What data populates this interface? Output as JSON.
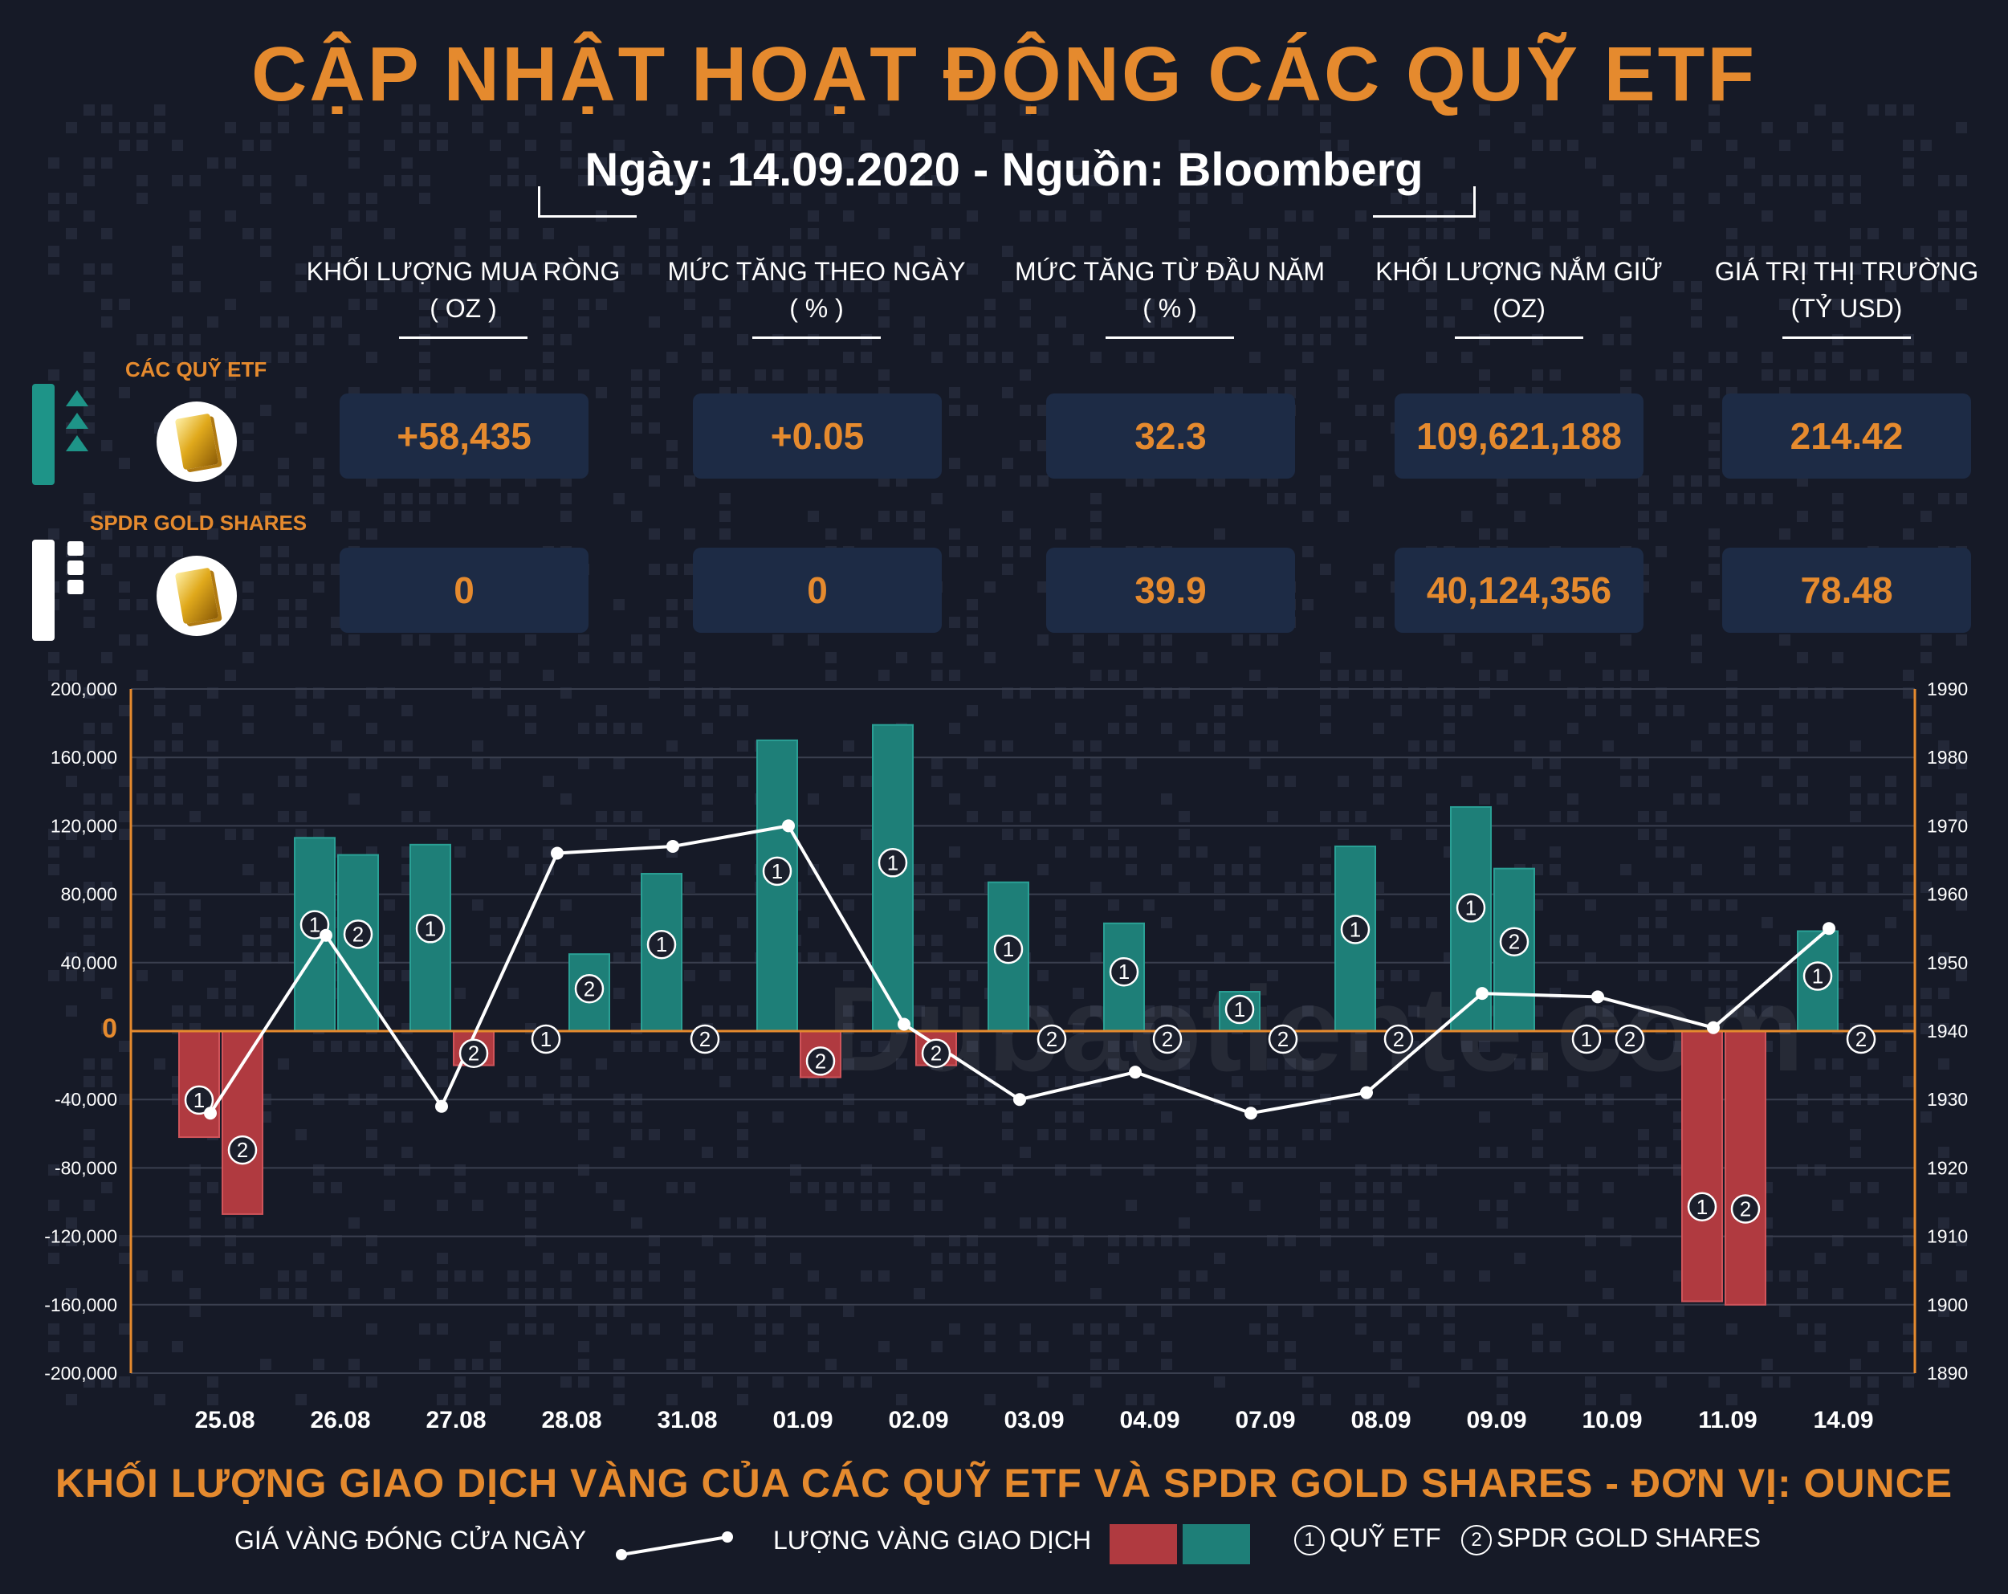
{
  "header": {
    "title": "CẬP NHẬT HOẠT ĐỘNG CÁC QUỸ ETF",
    "subtitle": "Ngày: 14.09.2020 - Nguồn: Bloomberg"
  },
  "table": {
    "columns": [
      {
        "line1": "KHỐI LƯỢNG MUA RÒNG",
        "line2": "( OZ )"
      },
      {
        "line1": "MỨC TĂNG THEO NGÀY",
        "line2": "( % )"
      },
      {
        "line1": "MỨC TĂNG TỪ ĐẦU NĂM",
        "line2": "( % )"
      },
      {
        "line1": "KHỐI LƯỢNG NẮM GIỮ",
        "line2": "(OZ)"
      },
      {
        "line1": "GIÁ TRỊ THỊ TRƯỜNG",
        "line2": "(TỶ USD)"
      }
    ],
    "rows": [
      {
        "label": "CÁC QUỸ ETF",
        "values": [
          "+58,435",
          "+0.05",
          "32.3",
          "109,621,188",
          "214.42"
        ]
      },
      {
        "label": "SPDR GOLD SHARES",
        "values": [
          "0",
          "0",
          "39.9",
          "40,124,356",
          "78.48"
        ]
      }
    ]
  },
  "watermark": "Dubaotiente.com",
  "colors": {
    "accent": "#e58a2e",
    "positive": "#1e7f78",
    "negative": "#b03a40",
    "background": "#161a27",
    "box": "#1d2b45"
  },
  "chart_data": {
    "type": "bar",
    "categories": [
      "25.08",
      "26.08",
      "27.08",
      "28.08",
      "31.08",
      "01.09",
      "02.09",
      "03.09",
      "04.09",
      "07.09",
      "08.09",
      "09.09",
      "10.09",
      "11.09",
      "14.09"
    ],
    "series": [
      {
        "name": "QUỸ ETF",
        "marker": "1",
        "values": [
          -62000,
          113000,
          109000,
          0,
          92000,
          170000,
          179000,
          87000,
          63000,
          23000,
          108000,
          131000,
          0,
          -158000,
          58435
        ]
      },
      {
        "name": "SPDR GOLD SHARES",
        "marker": "2",
        "values": [
          -107000,
          103000,
          -20000,
          45000,
          0,
          -27000,
          -20000,
          0,
          0,
          0,
          0,
          95000,
          0,
          -160000,
          0
        ]
      }
    ],
    "line_series": {
      "name": "GIÁ VÀNG ĐÓNG CỬA NGÀY",
      "axis": "right",
      "values": [
        1928,
        1954,
        1929,
        1966,
        1967,
        1970,
        1941,
        1930,
        1934,
        1928,
        1931,
        1945.5,
        1945,
        1940.5,
        1955
      ]
    },
    "y_left": {
      "range": [
        -200000,
        200000
      ],
      "ticks": [
        "200,000",
        "160,000",
        "120,000",
        "80,000",
        "40,000",
        "0",
        "-40,000",
        "-80,000",
        "-120,000",
        "-160,000",
        "-200,000"
      ]
    },
    "y_right": {
      "range": [
        1890,
        1990
      ],
      "ticks": [
        "1990",
        "1980",
        "1970",
        "1960",
        "1950",
        "1940",
        "1930",
        "1920",
        "1910",
        "1900",
        "1890"
      ]
    },
    "grid": true,
    "caption": "KHỐI LƯỢNG GIAO DỊCH VÀNG CỦA CÁC QUỸ ETF VÀ SPDR GOLD SHARES - ĐƠN VỊ: OUNCE"
  },
  "legend": {
    "price_line": "GIÁ VÀNG ĐÓNG CỬA NGÀY",
    "volume": "LƯỢNG VÀNG GIAO DỊCH",
    "etf_marker": "1",
    "etf": "QUỸ ETF",
    "spdr_marker": "2",
    "spdr": "SPDR GOLD SHARES"
  }
}
